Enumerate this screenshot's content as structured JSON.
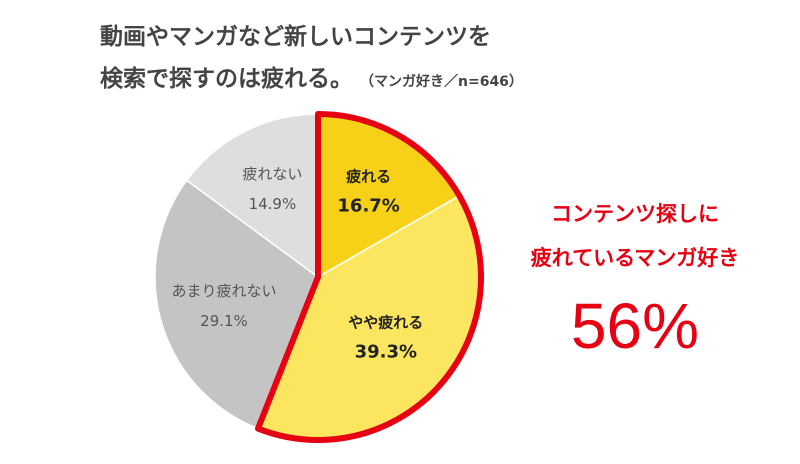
{
  "title": {
    "line1": "動画やマンガなど新しいコンテンツを",
    "line2": "検索で探すのは疲れる。",
    "sample": "（マンガ好き／n=646）"
  },
  "callout": {
    "line1": "コンテンツ探しに",
    "line2": "疲れているマンガ好き",
    "value": "56%"
  },
  "colors": {
    "highlight": "#e60012",
    "text_dark": "#222222",
    "text_grey": "#555555"
  },
  "chart_data": {
    "type": "pie",
    "slices": [
      {
        "label": "疲れる",
        "value": 16.7,
        "value_label": "16.7%",
        "color": "#f7d117",
        "highlight": true
      },
      {
        "label": "やや疲れる",
        "value": 39.3,
        "value_label": "39.3%",
        "color": "#fde65f",
        "highlight": true
      },
      {
        "label": "あまり疲れない",
        "value": 29.1,
        "value_label": "29.1%",
        "color": "#c4c4c4",
        "highlight": false
      },
      {
        "label": "疲れない",
        "value": 14.9,
        "value_label": "14.9%",
        "color": "#dedede",
        "highlight": false
      }
    ],
    "start": "12 o'clock",
    "direction": "clockwise"
  }
}
